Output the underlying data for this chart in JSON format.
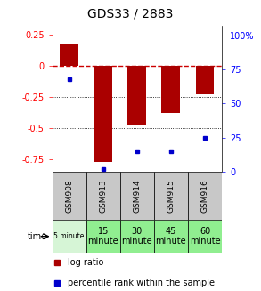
{
  "title": "GDS33 / 2883",
  "samples": [
    "GSM908",
    "GSM913",
    "GSM914",
    "GSM915",
    "GSM916"
  ],
  "time_labels": [
    "5 minute",
    "15\nminute",
    "30\nminute",
    "45\nminute",
    "60\nminute"
  ],
  "time_colors": [
    "#d6f5d6",
    "#90ee90",
    "#90ee90",
    "#90ee90",
    "#90ee90"
  ],
  "log_ratio": [
    0.18,
    -0.77,
    -0.47,
    -0.38,
    -0.23
  ],
  "percentile_rank": [
    68,
    2,
    15,
    15,
    25
  ],
  "bar_color": "#aa0000",
  "dot_color": "#0000cc",
  "ylim_left": [
    -0.85,
    0.32
  ],
  "ylim_right": [
    0,
    106.67
  ],
  "y_ticks_left": [
    0.25,
    0.0,
    -0.25,
    -0.5,
    -0.75
  ],
  "y_ticks_right": [
    100,
    75,
    50,
    25,
    0
  ],
  "zero_line_color": "#cc0000",
  "grid_color": "#000000",
  "background_color": "#ffffff",
  "sample_bg_color": "#c8c8c8",
  "bar_width": 0.55,
  "title_fontsize": 10,
  "tick_fontsize": 7,
  "table_fontsize": 7,
  "legend_fontsize": 7
}
